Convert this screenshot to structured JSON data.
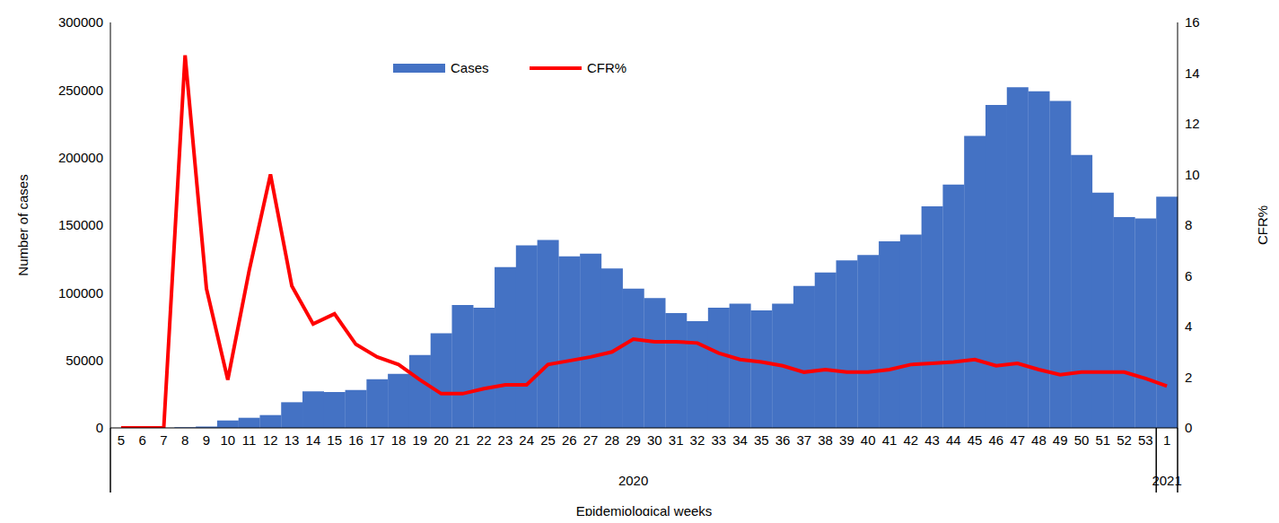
{
  "chart_data": {
    "type": "bar",
    "x_label": "Epidemiological weeks",
    "y_label": "Number of cases",
    "y2_label": "CFR%",
    "categories": [
      "5",
      "6",
      "7",
      "8",
      "9",
      "10",
      "11",
      "12",
      "13",
      "14",
      "15",
      "16",
      "17",
      "18",
      "19",
      "20",
      "21",
      "22",
      "23",
      "24",
      "25",
      "26",
      "27",
      "28",
      "29",
      "30",
      "31",
      "32",
      "33",
      "34",
      "35",
      "36",
      "37",
      "38",
      "39",
      "40",
      "41",
      "42",
      "43",
      "44",
      "45",
      "46",
      "47",
      "48",
      "49",
      "50",
      "51",
      "52",
      "53",
      "1"
    ],
    "series": [
      {
        "name": "Cases",
        "type": "bar",
        "color": "#4472c4",
        "values": [
          0,
          0,
          100,
          500,
          1000,
          5500,
          7500,
          9500,
          19000,
          27000,
          26500,
          28000,
          36000,
          40000,
          54000,
          70000,
          91000,
          89000,
          119000,
          135000,
          139000,
          127000,
          129000,
          118000,
          103000,
          96000,
          85000,
          79000,
          89000,
          92000,
          87000,
          92000,
          105000,
          115000,
          124000,
          128000,
          138000,
          143000,
          164000,
          180000,
          216000,
          239000,
          252000,
          249000,
          242000,
          202000,
          174000,
          156000,
          155000,
          171000
        ]
      },
      {
        "name": "CFR%",
        "type": "line",
        "axis": "y2",
        "color": "#ff0000",
        "values": [
          0,
          0,
          0,
          14.7,
          5.5,
          1.9,
          6.2,
          10,
          5.6,
          4.1,
          4.5,
          3.3,
          2.8,
          2.5,
          1.9,
          1.35,
          1.35,
          1.55,
          1.7,
          1.7,
          2.5,
          2.65,
          2.8,
          3.0,
          3.5,
          3.4,
          3.4,
          3.35,
          2.95,
          2.7,
          2.6,
          2.45,
          2.2,
          2.3,
          2.2,
          2.2,
          2.3,
          2.5,
          2.55,
          2.6,
          2.7,
          2.45,
          2.55,
          2.3,
          2.1,
          2.2,
          2.2,
          2.2,
          1.95,
          1.65
        ]
      }
    ],
    "ylim": [
      0,
      300000
    ],
    "yticks": [
      0,
      50000,
      100000,
      150000,
      200000,
      250000,
      300000
    ],
    "y2lim": [
      0,
      16
    ],
    "y2ticks": [
      0,
      2,
      4,
      6,
      8,
      10,
      12,
      14,
      16
    ],
    "annotations": [
      {
        "text": "2020",
        "from": "5",
        "to": "53"
      },
      {
        "text": "2021",
        "from": "1",
        "to": "1"
      }
    ],
    "grid": false
  }
}
